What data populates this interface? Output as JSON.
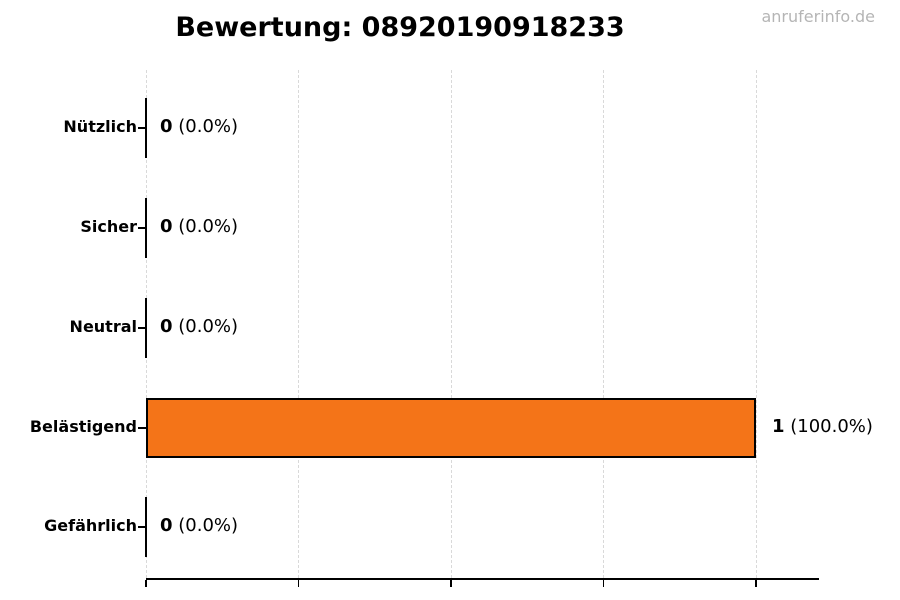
{
  "header": {
    "title": "Bewertung: 08920190918233"
  },
  "watermark": {
    "text": "anruferinfo.de",
    "color": "#b5b5b5"
  },
  "chart_data": {
    "type": "bar",
    "orientation": "horizontal",
    "title": "Bewertung: 08920190918233",
    "categories": [
      "Nützlich",
      "Sicher",
      "Neutral",
      "Belästigend",
      "Gefährlich"
    ],
    "values": [
      0,
      0,
      0,
      1,
      0
    ],
    "percentages": [
      "0.0%",
      "0.0%",
      "0.0%",
      "100.0%",
      "0.0%"
    ],
    "value_label_format": "count (percent)",
    "xlabel": "",
    "ylabel": "",
    "xlim": [
      0,
      1.1
    ],
    "x_gridline_values": [
      0,
      0.25,
      0.5,
      0.75,
      1.0
    ],
    "x_tick_labels": [],
    "grid": {
      "axis": "x",
      "style": "dashed",
      "color": "#d9d9d9"
    },
    "legend": null,
    "bar_color": "#f47418",
    "bar_edge_color": "#000000",
    "axis_color": "#000000"
  }
}
